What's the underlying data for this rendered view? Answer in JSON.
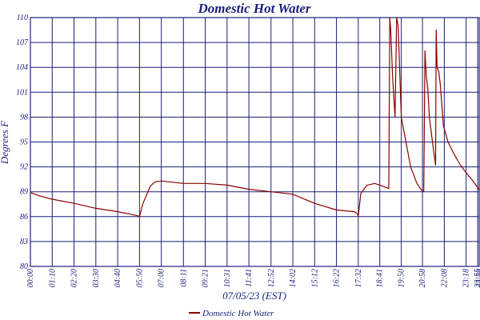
{
  "chart_data": {
    "type": "line",
    "title": "Domestic Hot Water",
    "xlabel": "07/05/23 (EST)",
    "ylabel": "Degrees F",
    "ylim": [
      80,
      110
    ],
    "yticks": [
      80,
      83,
      86,
      89,
      92,
      95,
      98,
      101,
      104,
      107,
      110
    ],
    "ytick_labels": [
      "80",
      "83",
      "86",
      "89",
      "92",
      "95",
      "98",
      "101",
      "104",
      "107",
      "110"
    ],
    "xlim": [
      0,
      1440
    ],
    "xticks": [
      0,
      70,
      140,
      210,
      280,
      350,
      420,
      491,
      561,
      631,
      701,
      772,
      842,
      912,
      982,
      1052,
      1121,
      1190,
      1258,
      1328,
      1398,
      1435,
      1440
    ],
    "xtick_labels": [
      "00:00",
      "01:10",
      "02:20",
      "03:30",
      "04:40",
      "05:50",
      "07:00",
      "08:11",
      "09:21",
      "10:31",
      "11:41",
      "12:52",
      "14:02",
      "15:12",
      "16:22",
      "17:32",
      "18:41",
      "19:50",
      "20:58",
      "22:08",
      "23:18",
      "23:55",
      "23:59"
    ],
    "grid": true,
    "legend_position": "bottom-center",
    "series": [
      {
        "name": "Domestic Hot Water",
        "color": "#8b0000",
        "x": [
          0,
          30,
          70,
          140,
          210,
          280,
          320,
          345,
          350,
          360,
          385,
          400,
          420,
          491,
          561,
          631,
          701,
          772,
          842,
          912,
          982,
          1040,
          1050,
          1052,
          1060,
          1080,
          1105,
          1121,
          1150,
          1153,
          1156,
          1162,
          1165,
          1170,
          1175,
          1180,
          1190,
          1200,
          1220,
          1240,
          1255,
          1262,
          1266,
          1270,
          1275,
          1280,
          1290,
          1300,
          1302,
          1305,
          1310,
          1315,
          1325,
          1340,
          1360,
          1380,
          1400,
          1420,
          1435,
          1440
        ],
        "y": [
          88.9,
          88.5,
          88.1,
          87.6,
          87.0,
          86.6,
          86.3,
          86.1,
          86.0,
          87.5,
          89.7,
          90.2,
          90.3,
          90.0,
          90.0,
          89.8,
          89.3,
          89.0,
          88.7,
          87.6,
          86.8,
          86.6,
          86.3,
          86.0,
          88.8,
          89.8,
          90.0,
          89.8,
          89.4,
          110.0,
          108.5,
          103.0,
          101.0,
          98.0,
          110.0,
          109.0,
          98.0,
          96.0,
          92.0,
          90.0,
          89.2,
          89.0,
          106.0,
          103.0,
          101.5,
          98.0,
          95.0,
          92.2,
          108.5,
          104.0,
          103.5,
          102.0,
          97.0,
          95.0,
          93.5,
          92.2,
          91.2,
          90.3,
          89.5,
          89.2
        ]
      }
    ]
  }
}
